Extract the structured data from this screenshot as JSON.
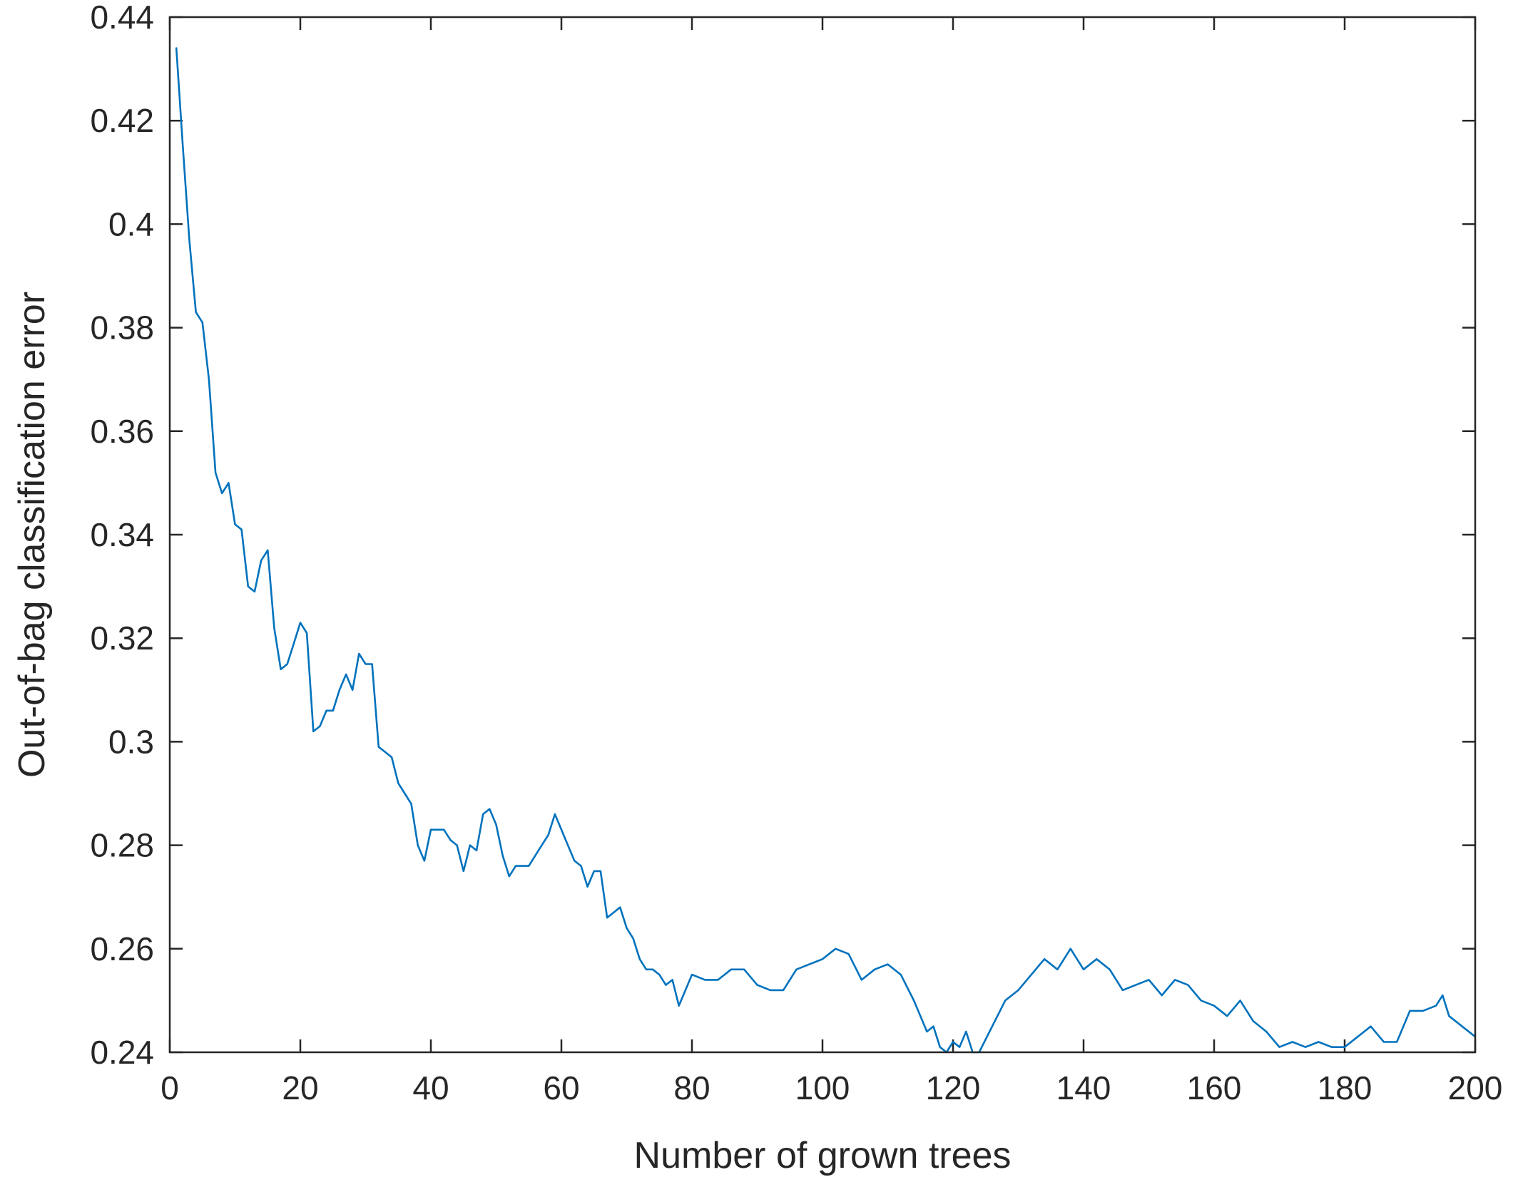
{
  "chart_data": {
    "type": "line",
    "title": "",
    "xlabel": "Number of grown trees",
    "ylabel": "Out-of-bag classification error",
    "xlim": [
      0,
      200
    ],
    "ylim": [
      0.24,
      0.44
    ],
    "xticks": [
      0,
      20,
      40,
      60,
      80,
      100,
      120,
      140,
      160,
      180,
      200
    ],
    "xtick_labels": [
      "0",
      "20",
      "40",
      "60",
      "80",
      "100",
      "120",
      "140",
      "160",
      "180",
      "200"
    ],
    "yticks": [
      0.24,
      0.26,
      0.28,
      0.3,
      0.32,
      0.34,
      0.36,
      0.38,
      0.4,
      0.42,
      0.44
    ],
    "ytick_labels": [
      "0.24",
      "0.26",
      "0.28",
      "0.3",
      "0.32",
      "0.34",
      "0.36",
      "0.38",
      "0.4",
      "0.42",
      "0.44"
    ],
    "grid": false,
    "box": true,
    "series": [
      {
        "color": "#0072BD",
        "x": [
          1,
          2,
          3,
          4,
          5,
          6,
          7,
          8,
          9,
          10,
          11,
          12,
          13,
          14,
          15,
          16,
          17,
          18,
          19,
          20,
          21,
          22,
          23,
          24,
          25,
          26,
          27,
          28,
          29,
          30,
          31,
          32,
          33,
          34,
          35,
          36,
          37,
          38,
          39,
          40,
          41,
          42,
          43,
          44,
          45,
          46,
          47,
          48,
          49,
          50,
          51,
          52,
          53,
          54,
          55,
          56,
          57,
          58,
          59,
          60,
          61,
          62,
          63,
          64,
          65,
          66,
          67,
          68,
          69,
          70,
          71,
          72,
          73,
          74,
          75,
          76,
          77,
          78,
          79,
          80,
          82,
          84,
          86,
          88,
          90,
          92,
          94,
          96,
          98,
          100,
          102,
          104,
          106,
          108,
          110,
          112,
          114,
          116,
          117,
          118,
          119,
          120,
          121,
          122,
          123,
          124,
          126,
          128,
          130,
          132,
          134,
          136,
          138,
          140,
          142,
          144,
          146,
          148,
          150,
          152,
          154,
          156,
          158,
          160,
          162,
          164,
          166,
          168,
          170,
          172,
          174,
          176,
          178,
          180,
          182,
          184,
          186,
          188,
          190,
          192,
          194,
          195,
          196,
          198,
          200
        ],
        "y": [
          0.434,
          0.415,
          0.397,
          0.383,
          0.381,
          0.37,
          0.352,
          0.348,
          0.35,
          0.342,
          0.341,
          0.33,
          0.329,
          0.335,
          0.337,
          0.322,
          0.314,
          0.315,
          0.319,
          0.323,
          0.321,
          0.302,
          0.303,
          0.306,
          0.306,
          0.31,
          0.313,
          0.31,
          0.317,
          0.315,
          0.315,
          0.299,
          0.298,
          0.297,
          0.292,
          0.29,
          0.288,
          0.28,
          0.277,
          0.283,
          0.283,
          0.283,
          0.281,
          0.28,
          0.275,
          0.28,
          0.279,
          0.286,
          0.287,
          0.284,
          0.278,
          0.274,
          0.276,
          0.276,
          0.276,
          0.278,
          0.28,
          0.282,
          0.286,
          0.283,
          0.28,
          0.277,
          0.276,
          0.272,
          0.275,
          0.275,
          0.266,
          0.267,
          0.268,
          0.264,
          0.262,
          0.258,
          0.256,
          0.256,
          0.255,
          0.253,
          0.254,
          0.249,
          0.252,
          0.255,
          0.254,
          0.254,
          0.256,
          0.256,
          0.253,
          0.252,
          0.252,
          0.256,
          0.257,
          0.258,
          0.26,
          0.259,
          0.254,
          0.256,
          0.257,
          0.255,
          0.25,
          0.244,
          0.245,
          0.241,
          0.24,
          0.242,
          0.241,
          0.244,
          0.24,
          0.24,
          0.245,
          0.25,
          0.252,
          0.255,
          0.258,
          0.256,
          0.26,
          0.256,
          0.258,
          0.256,
          0.252,
          0.253,
          0.254,
          0.251,
          0.254,
          0.253,
          0.25,
          0.249,
          0.247,
          0.25,
          0.246,
          0.244,
          0.241,
          0.242,
          0.241,
          0.242,
          0.241,
          0.241,
          0.243,
          0.245,
          0.242,
          0.242,
          0.248,
          0.248,
          0.249,
          0.251,
          0.247,
          0.245,
          0.243
        ]
      }
    ]
  }
}
